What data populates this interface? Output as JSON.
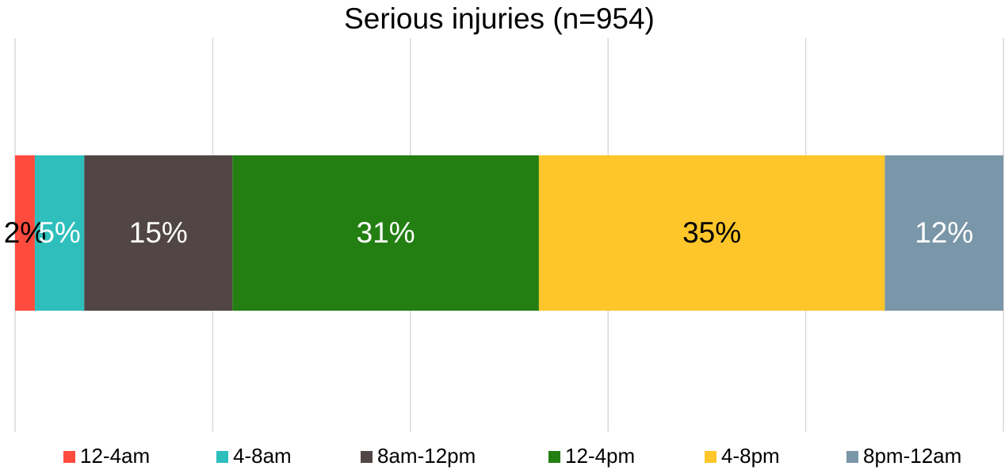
{
  "chart_data": {
    "type": "stacked_bar_horizontal",
    "title": "Serious injuries (n=954)",
    "series": [
      {
        "name": "12-4am",
        "color": "#ff4b3e",
        "label_color": "#000000",
        "values": [
          2
        ],
        "value_labels": [
          "2%"
        ]
      },
      {
        "name": "4-8am",
        "color": "#2ebfbc",
        "label_color": "#ffffff",
        "values": [
          5
        ],
        "value_labels": [
          "5%"
        ]
      },
      {
        "name": "8am-12pm",
        "color": "#514645",
        "label_color": "#ffffff",
        "values": [
          15
        ],
        "value_labels": [
          "15%"
        ]
      },
      {
        "name": "12-4pm",
        "color": "#237f12",
        "label_color": "#ffffff",
        "values": [
          31
        ],
        "value_labels": [
          "31%"
        ]
      },
      {
        "name": "4-8pm",
        "color": "#fec62a",
        "label_color": "#000000",
        "values": [
          35
        ],
        "value_labels": [
          "35%"
        ]
      },
      {
        "name": "8pm-12am",
        "color": "#7a96a9",
        "label_color": "#ffffff",
        "values": [
          12
        ],
        "value_labels": [
          "12%"
        ]
      }
    ],
    "xlim": [
      0,
      100
    ],
    "xticks": [
      0,
      20,
      40,
      60,
      80,
      100
    ],
    "grid": true,
    "legend": "bottom"
  }
}
